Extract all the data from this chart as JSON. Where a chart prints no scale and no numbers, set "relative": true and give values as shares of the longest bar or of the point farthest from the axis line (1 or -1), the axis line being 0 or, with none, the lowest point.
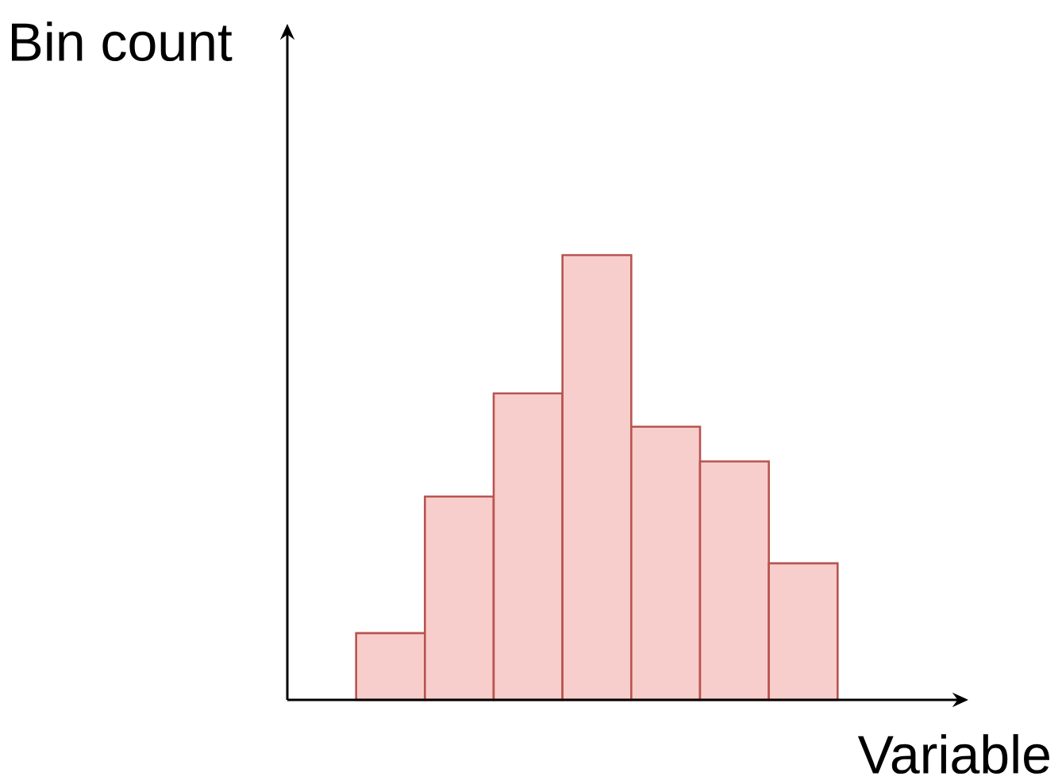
{
  "chart_data": {
    "type": "bar",
    "xlabel": "Variable",
    "ylabel": "Bin count",
    "categories": [
      null,
      null,
      null,
      null,
      null,
      null,
      null
    ],
    "values": [
      0.15,
      0.457,
      0.689,
      1,
      0.614,
      0.536,
      0.307
    ],
    "color": "#f8cecc",
    "relative": true
  }
}
